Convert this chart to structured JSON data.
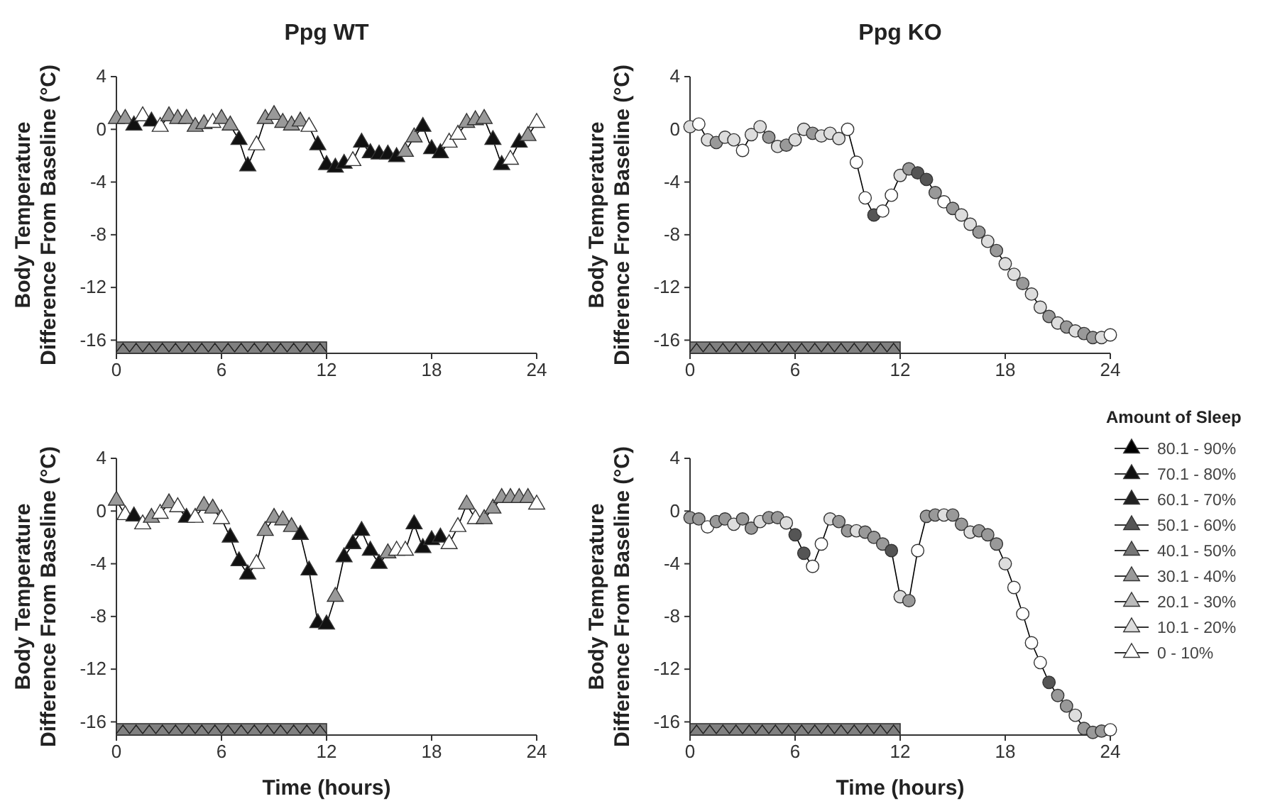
{
  "chart_data": [
    {
      "type": "line",
      "title": "Ppg WT",
      "ylabel": "Body Temperature\nDifference From Baseline (°C)",
      "marker": "triangle",
      "xlim": [
        0,
        24
      ],
      "xticks": [
        0,
        6,
        12,
        18,
        24
      ],
      "ylim": [
        -17,
        4
      ],
      "yticks": [
        4,
        0,
        -4,
        -8,
        -12,
        -16
      ],
      "bands": [
        {
          "axis": "x",
          "from": 0,
          "to": 12,
          "color": "#808080"
        }
      ],
      "x": [
        0,
        0.5,
        1,
        1.5,
        2,
        2.5,
        3,
        3.5,
        4,
        4.5,
        5,
        5.5,
        6,
        6.5,
        7,
        7.5,
        8,
        8.5,
        9,
        9.5,
        10,
        10.5,
        11,
        11.5,
        12,
        12.5,
        13,
        13.5,
        14,
        14.5,
        15,
        15.5,
        16,
        16.5,
        17,
        17.5,
        18,
        18.5,
        19,
        19.5,
        20,
        20.5,
        21,
        21.5,
        22,
        22.5,
        23,
        23.5,
        24
      ],
      "series": [
        {
          "color": "#000000",
          "values": [
            0.8,
            0.8,
            0.3,
            1.0,
            0.6,
            0.2,
            1.0,
            0.8,
            0.8,
            0.2,
            0.4,
            0.5,
            0.8,
            0.3,
            -0.8,
            -2.8,
            -1.2,
            0.8,
            1.1,
            0.5,
            0.3,
            0.6,
            0.2,
            -1.2,
            -2.7,
            -2.9,
            -2.6,
            -2.4,
            -1.0,
            -1.8,
            -1.9,
            -1.9,
            -2.1,
            -1.7,
            -0.6,
            0.2,
            -1.5,
            -1.8,
            -1.0,
            -0.4,
            0.5,
            0.7,
            0.8,
            -0.8,
            -2.7,
            -2.3,
            -1.0,
            -0.5,
            0.5
          ],
          "colors": [
            "#999999",
            "#999999",
            "#111111",
            "#ffffff",
            "#111111",
            "#ffffff",
            "#999999",
            "#999999",
            "#999999",
            "#999999",
            "#999999",
            "#ffffff",
            "#999999",
            "#999999",
            "#111111",
            "#111111",
            "#ffffff",
            "#999999",
            "#999999",
            "#999999",
            "#999999",
            "#999999",
            "#ffffff",
            "#111111",
            "#111111",
            "#111111",
            "#111111",
            "#ffffff",
            "#111111",
            "#111111",
            "#111111",
            "#111111",
            "#111111",
            "#999999",
            "#999999",
            "#111111",
            "#111111",
            "#111111",
            "#ffffff",
            "#ffffff",
            "#999999",
            "#999999",
            "#999999",
            "#111111",
            "#111111",
            "#ffffff",
            "#111111",
            "#999999",
            "#ffffff"
          ]
        }
      ]
    },
    {
      "type": "line",
      "title": "Ppg KO",
      "ylabel": "Body Temperature\nDifference From Baseline (°C)",
      "marker": "circle",
      "xlim": [
        0,
        24
      ],
      "xticks": [
        0,
        6,
        12,
        18,
        24
      ],
      "ylim": [
        -17,
        4
      ],
      "yticks": [
        4,
        0,
        -4,
        -8,
        -12,
        -16
      ],
      "bands": [
        {
          "axis": "x",
          "from": 0,
          "to": 12,
          "color": "#808080"
        }
      ],
      "x": [
        0,
        0.5,
        1,
        1.5,
        2,
        2.5,
        3,
        3.5,
        4,
        4.5,
        5,
        5.5,
        6,
        6.5,
        7,
        7.5,
        8,
        8.5,
        9,
        9.5,
        10,
        10.5,
        11,
        11.5,
        12,
        12.5,
        13,
        13.5,
        14,
        14.5,
        15,
        15.5,
        16,
        16.5,
        17,
        17.5,
        18,
        18.5,
        19,
        19.5,
        20,
        20.5,
        21,
        21.5,
        22,
        22.5,
        23,
        23.5,
        24
      ],
      "series": [
        {
          "color": "#000000",
          "values": [
            0.2,
            0.4,
            -0.8,
            -1.0,
            -0.6,
            -0.8,
            -1.6,
            -0.4,
            0.2,
            -0.6,
            -1.3,
            -1.2,
            -0.8,
            0.0,
            -0.3,
            -0.5,
            -0.3,
            -0.7,
            0.0,
            -2.5,
            -5.2,
            -6.5,
            -6.2,
            -5.0,
            -3.5,
            -3.0,
            -3.3,
            -3.8,
            -4.8,
            -5.5,
            -6.0,
            -6.5,
            -7.2,
            -7.8,
            -8.5,
            -9.2,
            -10.2,
            -11.0,
            -11.7,
            -12.5,
            -13.5,
            -14.2,
            -14.7,
            -15.0,
            -15.3,
            -15.5,
            -15.8,
            -15.8,
            -15.6
          ],
          "colors": [
            "#dddddd",
            "#ffffff",
            "#dddddd",
            "#999999",
            "#dddddd",
            "#dddddd",
            "#ffffff",
            "#dddddd",
            "#dddddd",
            "#999999",
            "#dddddd",
            "#999999",
            "#dddddd",
            "#dddddd",
            "#999999",
            "#dddddd",
            "#dddddd",
            "#dddddd",
            "#ffffff",
            "#ffffff",
            "#ffffff",
            "#555555",
            "#ffffff",
            "#ffffff",
            "#dddddd",
            "#999999",
            "#555555",
            "#555555",
            "#999999",
            "#ffffff",
            "#999999",
            "#dddddd",
            "#dddddd",
            "#999999",
            "#dddddd",
            "#999999",
            "#dddddd",
            "#dddddd",
            "#999999",
            "#dddddd",
            "#dddddd",
            "#999999",
            "#dddddd",
            "#999999",
            "#dddddd",
            "#999999",
            "#999999",
            "#dddddd",
            "#ffffff"
          ]
        }
      ]
    },
    {
      "type": "line",
      "xlabel": "Time (hours)",
      "ylabel": "Body Temperature\nDifference From Baseline (°C)",
      "marker": "triangle",
      "xlim": [
        0,
        24
      ],
      "xticks": [
        0,
        6,
        12,
        18,
        24
      ],
      "ylim": [
        -17,
        4
      ],
      "yticks": [
        4,
        0,
        -4,
        -8,
        -12,
        -16
      ],
      "bands": [
        {
          "axis": "x",
          "from": 0,
          "to": 12,
          "color": "#808080"
        }
      ],
      "x": [
        0,
        0.5,
        1,
        1.5,
        2,
        2.5,
        3,
        3.5,
        4,
        4.5,
        5,
        5.5,
        6,
        6.5,
        7,
        7.5,
        8,
        8.5,
        9,
        9.5,
        10,
        10.5,
        11,
        11.5,
        12,
        12.5,
        13,
        13.5,
        14,
        14.5,
        15,
        15.5,
        16,
        16.5,
        17,
        17.5,
        18,
        18.5,
        19,
        19.5,
        20,
        20.5,
        21,
        21.5,
        22,
        22.5,
        23,
        23.5,
        24
      ],
      "series": [
        {
          "color": "#000000",
          "values": [
            0.8,
            -0.3,
            -0.4,
            -1.0,
            -0.5,
            -0.2,
            0.6,
            0.3,
            -0.5,
            -0.5,
            0.4,
            0.2,
            -0.6,
            -2.0,
            -3.8,
            -4.8,
            -4.0,
            -1.5,
            -0.5,
            -0.7,
            -1.2,
            -1.8,
            -4.5,
            -8.5,
            -8.6,
            -6.5,
            -3.5,
            -2.5,
            -1.5,
            -3.0,
            -4.0,
            -3.2,
            -3.0,
            -3.0,
            -1.0,
            -2.8,
            -2.2,
            -2.0,
            -2.5,
            -1.2,
            0.5,
            -0.6,
            -0.6,
            0.2,
            1.0,
            1.0,
            1.0,
            1.0,
            0.5
          ],
          "colors": [
            "#999999",
            "#ffffff",
            "#111111",
            "#ffffff",
            "#999999",
            "#ffffff",
            "#999999",
            "#ffffff",
            "#111111",
            "#ffffff",
            "#999999",
            "#999999",
            "#ffffff",
            "#111111",
            "#111111",
            "#111111",
            "#ffffff",
            "#999999",
            "#999999",
            "#999999",
            "#999999",
            "#111111",
            "#111111",
            "#111111",
            "#111111",
            "#999999",
            "#111111",
            "#111111",
            "#111111",
            "#111111",
            "#111111",
            "#999999",
            "#ffffff",
            "#ffffff",
            "#111111",
            "#111111",
            "#111111",
            "#111111",
            "#ffffff",
            "#ffffff",
            "#999999",
            "#ffffff",
            "#999999",
            "#999999",
            "#999999",
            "#999999",
            "#999999",
            "#999999",
            "#ffffff"
          ]
        }
      ]
    },
    {
      "type": "line",
      "xlabel": "Time (hours)",
      "ylabel": "Body Temperature\nDifference From Baseline (°C)",
      "marker": "circle",
      "xlim": [
        0,
        24
      ],
      "xticks": [
        0,
        6,
        12,
        18,
        24
      ],
      "ylim": [
        -17,
        4
      ],
      "yticks": [
        4,
        0,
        -4,
        -8,
        -12,
        -16
      ],
      "bands": [
        {
          "axis": "x",
          "from": 0,
          "to": 12,
          "color": "#808080"
        }
      ],
      "x": [
        0,
        0.5,
        1,
        1.5,
        2,
        2.5,
        3,
        3.5,
        4,
        4.5,
        5,
        5.5,
        6,
        6.5,
        7,
        7.5,
        8,
        8.5,
        9,
        9.5,
        10,
        10.5,
        11,
        11.5,
        12,
        12.5,
        13,
        13.5,
        14,
        14.5,
        15,
        15.5,
        16,
        16.5,
        17,
        17.5,
        18,
        18.5,
        19,
        19.5,
        20,
        20.5,
        21,
        21.5,
        22,
        22.5,
        23,
        23.5,
        24
      ],
      "series": [
        {
          "color": "#000000",
          "values": [
            -0.5,
            -0.6,
            -1.2,
            -0.8,
            -0.6,
            -1.0,
            -0.6,
            -1.3,
            -0.8,
            -0.5,
            -0.5,
            -0.9,
            -1.8,
            -3.2,
            -4.2,
            -2.5,
            -0.6,
            -0.8,
            -1.5,
            -1.5,
            -1.6,
            -2.0,
            -2.5,
            -3.0,
            -6.5,
            -6.8,
            -3.0,
            -0.4,
            -0.3,
            -0.3,
            -0.3,
            -1.0,
            -1.6,
            -1.5,
            -1.8,
            -2.5,
            -4.0,
            -5.8,
            -7.8,
            -10.0,
            -11.5,
            -13.0,
            -14.0,
            -14.8,
            -15.5,
            -16.5,
            -16.8,
            -16.7,
            -16.6
          ],
          "colors": [
            "#999999",
            "#999999",
            "#ffffff",
            "#999999",
            "#999999",
            "#dddddd",
            "#999999",
            "#999999",
            "#dddddd",
            "#999999",
            "#999999",
            "#dddddd",
            "#555555",
            "#555555",
            "#ffffff",
            "#ffffff",
            "#dddddd",
            "#999999",
            "#999999",
            "#dddddd",
            "#999999",
            "#999999",
            "#999999",
            "#555555",
            "#dddddd",
            "#999999",
            "#ffffff",
            "#999999",
            "#999999",
            "#dddddd",
            "#999999",
            "#999999",
            "#dddddd",
            "#999999",
            "#999999",
            "#999999",
            "#dddddd",
            "#ffffff",
            "#ffffff",
            "#ffffff",
            "#ffffff",
            "#555555",
            "#999999",
            "#999999",
            "#dddddd",
            "#999999",
            "#999999",
            "#999999",
            "#ffffff"
          ]
        }
      ]
    },
    {
      "type": "other",
      "legend_title": "Amount of Sleep",
      "categories": [
        "80.1 - 90%",
        "70.1 - 80%",
        "60.1 - 70%",
        "50.1 - 60%",
        "40.1 - 50%",
        "30.1 - 40%",
        "20.1 - 30%",
        "10.1 - 20%",
        "0 - 10%"
      ],
      "colors": [
        "#000000",
        "#111111",
        "#222222",
        "#555555",
        "#777777",
        "#999999",
        "#bbbbbb",
        "#dddddd",
        "#ffffff"
      ]
    }
  ]
}
